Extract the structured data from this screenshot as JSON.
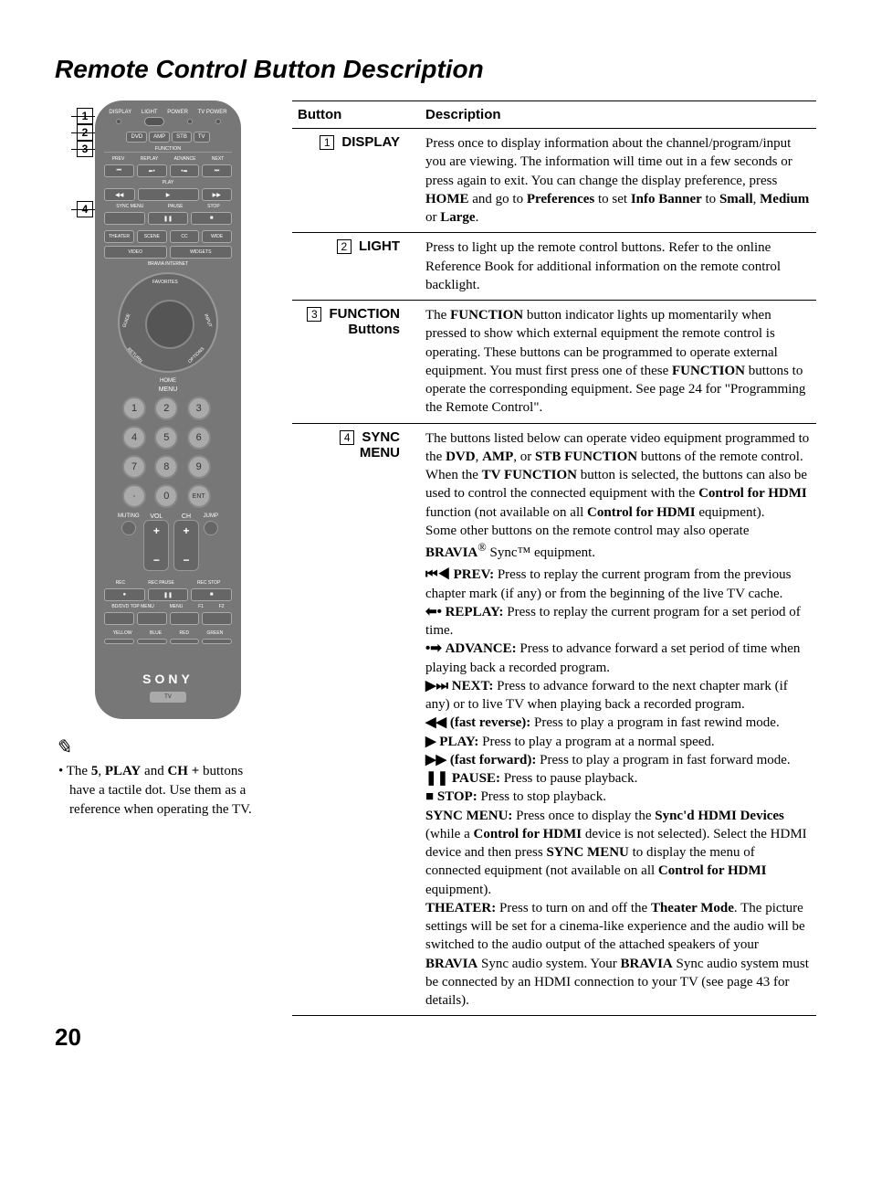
{
  "page": {
    "title": "Remote Control Button Description",
    "number": "20"
  },
  "table": {
    "headers": {
      "button": "Button",
      "description": "Description"
    },
    "rows": [
      {
        "num": "1",
        "name": "DISPLAY",
        "desc_html": "Press once to display information about the channel/program/input you are viewing. The information will time out in a few seconds or press again to exit. You can change the display preference, press <b>HOME</b> and go to <b>Preferences</b> to set <b>Info Banner</b> to <b>Small</b>, <b>Medium</b> or <b>Large</b>."
      },
      {
        "num": "2",
        "name": "LIGHT",
        "desc_html": "Press to light up the remote control buttons. Refer to the online Reference Book for additional information on the remote control backlight."
      },
      {
        "num": "3",
        "name": "FUNCTION Buttons",
        "desc_html": "The <b>FUNCTION</b> button indicator lights up momentarily when pressed to show which external equipment the remote control is operating. These buttons can be programmed to operate external equipment. You must first press one of these <b>FUNCTION</b> buttons to operate the corresponding equipment. See page 24 for \"Programming the Remote Control\"."
      },
      {
        "num": "4",
        "name": "SYNC MENU",
        "desc_html": "The buttons listed below can operate video equipment programmed to the <b>DVD</b>, <b>AMP</b>, or <b>STB FUNCTION</b> buttons of the remote control. When the <b>TV FUNCTION</b> button is selected, the buttons can also be used to control the connected equipment with the <b>Control for HDMI</b> function (not available on all <b>Control for HDMI</b> equipment).<br>Some other buttons on the remote control may also operate <b>BRAVIA</b><sup>®</sup> Sync™ equipment.",
        "sync_items": [
          {
            "sym": "⏮◀",
            "label": "PREV:",
            "text": " Press to replay the current program from the previous chapter mark (if any) or from the beginning of the live TV cache."
          },
          {
            "sym": "⬅•",
            "label": "REPLAY:",
            "text": " Press to replay the current program for a set period of time."
          },
          {
            "sym": "•➡",
            "label": "ADVANCE:",
            "text": " Press to advance forward a set period of time when playing back a recorded program."
          },
          {
            "sym": "▶⏭",
            "label": "NEXT:",
            "text": " Press to advance forward to the next chapter mark (if any) or to live TV when playing back a recorded program."
          },
          {
            "sym": "◀◀",
            "label": "(fast reverse):",
            "text": " Press to play a program in fast rewind mode."
          },
          {
            "sym": "▶",
            "label": "PLAY:",
            "text": " Press to play a program at a normal speed."
          },
          {
            "sym": "▶▶",
            "label": "(fast forward):",
            "text": " Press to play a program in fast forward mode."
          },
          {
            "sym": "❚❚",
            "label": "PAUSE:",
            "text": " Press to pause playback."
          },
          {
            "sym": "■",
            "label": "STOP:",
            "text": " Press to stop playback."
          }
        ],
        "sync_tail_html": "<b>SYNC MENU:</b> Press once to display the <b>Sync'd HDMI Devices</b> (while a <b>Control for HDMI</b> device is not selected). Select the HDMI device and then press <b>SYNC MENU</b> to display the menu of connected equipment (not available on all <b>Control for HDMI</b> equipment).<br><b>THEATER:</b> Press to turn on and off the <b>Theater Mode</b>. The picture settings will be set for a cinema-like experience and the audio will be switched to the audio output of the attached speakers of your <b>BRAVIA</b> Sync audio system. Your <b>BRAVIA</b> Sync audio system must be connected by an HDMI connection to your TV (see page 43 for details)."
      }
    ]
  },
  "note": {
    "text_html": "The <b>5</b>, <b>PLAY</b> and <b>CH +</b> buttons have a tactile dot. Use them as a reference when operating the TV."
  },
  "remote": {
    "top_labels": [
      "DISPLAY",
      "LIGHT",
      "POWER",
      "TV POWER"
    ],
    "function_buttons": [
      "DVD",
      "AMP",
      "STB",
      "TV"
    ],
    "function_label": "FUNCTION",
    "transport_top": [
      "PREV",
      "REPLAY",
      "ADVANCE",
      "NEXT"
    ],
    "transport_row1": [
      "⏮",
      "⬅•",
      "•➡",
      "⏭"
    ],
    "transport_mid": [
      "◀◀",
      "PLAY",
      "▶▶"
    ],
    "transport_row2": [
      "◀◀",
      "▶",
      "▶▶"
    ],
    "transport_bot": [
      "SYNC MENU",
      "PAUSE",
      "STOP"
    ],
    "transport_row3": [
      "",
      "❚❚",
      "■"
    ],
    "mode_row": [
      "THEATER",
      "SCENE",
      "CC",
      "WIDE"
    ],
    "video_widgets": [
      "VIDEO",
      "WIDGETS"
    ],
    "bravia": "BRAVIA INTERNET",
    "nav_arcs": [
      "FAVORITES",
      "INPUT",
      "OPTIONS",
      "RETURN",
      "GUIDE"
    ],
    "home": "HOME",
    "menu": "MENU",
    "numpad": [
      "1",
      "2",
      "3",
      "4",
      "5",
      "6",
      "7",
      "8",
      "9",
      "·",
      "0",
      "ENT"
    ],
    "vol": "VOL",
    "ch": "CH",
    "muting": "MUTING",
    "jump": "JUMP",
    "rec_row": [
      "REC",
      "REC PAUSE",
      "REC STOP"
    ],
    "bd_row": [
      "BD/DVD TOP MENU",
      "MENU",
      "F1",
      "F2"
    ],
    "colors": [
      "YELLOW",
      "BLUE",
      "RED",
      "GREEN"
    ],
    "brand": "SONY",
    "tv": "TV"
  },
  "callouts": [
    "1",
    "2",
    "3",
    "4"
  ]
}
